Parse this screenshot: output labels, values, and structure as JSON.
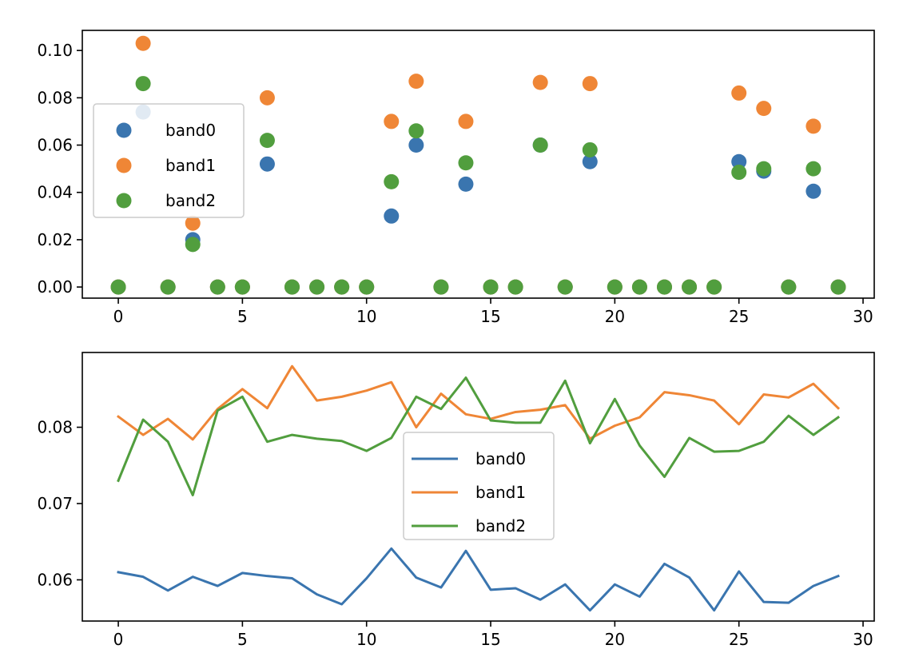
{
  "chart_data": [
    {
      "type": "scatter",
      "title": "",
      "xlabel": "",
      "ylabel": "",
      "xlim": [
        -1.45,
        30.45
      ],
      "ylim": [
        -0.0047,
        0.1085
      ],
      "xticks": [
        0,
        5,
        10,
        15,
        20,
        25,
        30
      ],
      "yticks": [
        0.0,
        0.02,
        0.04,
        0.06,
        0.08,
        0.1
      ],
      "ytick_labels": [
        "0.00",
        "0.02",
        "0.04",
        "0.06",
        "0.08",
        "0.10"
      ],
      "grid": false,
      "legend": {
        "placement": "center-left"
      },
      "x": [
        0,
        1,
        2,
        3,
        4,
        5,
        6,
        7,
        8,
        9,
        10,
        11,
        12,
        13,
        14,
        15,
        16,
        17,
        18,
        19,
        20,
        21,
        22,
        23,
        24,
        25,
        26,
        27,
        28,
        29
      ],
      "series": [
        {
          "name": "band0",
          "color": "#3a75af",
          "values": [
            0,
            0.074,
            0,
            0.02,
            0,
            0,
            0.052,
            0,
            0,
            0,
            0,
            0.03,
            0.06,
            0,
            0.0435,
            0,
            0,
            0.06,
            0,
            0.053,
            0,
            0,
            0,
            0,
            0,
            0.053,
            0.049,
            0,
            0.0405,
            0
          ]
        },
        {
          "name": "band1",
          "color": "#ef8636",
          "values": [
            0,
            0.103,
            0,
            0.027,
            0,
            0,
            0.08,
            0,
            0,
            0,
            0,
            0.07,
            0.087,
            0,
            0.07,
            0,
            0,
            0.0865,
            0,
            0.086,
            0,
            0,
            0,
            0,
            0,
            0.082,
            0.0755,
            0,
            0.068,
            0
          ]
        },
        {
          "name": "band2",
          "color": "#519e3e",
          "values": [
            0,
            0.086,
            0,
            0.018,
            0,
            0,
            0.062,
            0,
            0,
            0,
            0,
            0.0445,
            0.066,
            0,
            0.0525,
            0,
            0,
            0.06,
            0,
            0.058,
            0,
            0,
            0,
            0,
            0,
            0.0485,
            0.05,
            0,
            0.05,
            0
          ]
        }
      ]
    },
    {
      "type": "line",
      "title": "",
      "xlabel": "",
      "ylabel": "",
      "xlim": [
        -1.45,
        30.45
      ],
      "ylim": [
        0.0546,
        0.0898
      ],
      "xticks": [
        0,
        5,
        10,
        15,
        20,
        25,
        30
      ],
      "yticks": [
        0.06,
        0.07,
        0.08
      ],
      "ytick_labels": [
        "0.06",
        "0.07",
        "0.08"
      ],
      "grid": false,
      "legend": {
        "placement": "center"
      },
      "x": [
        0,
        1,
        2,
        3,
        4,
        5,
        6,
        7,
        8,
        9,
        10,
        11,
        12,
        13,
        14,
        15,
        16,
        17,
        18,
        19,
        20,
        21,
        22,
        23,
        24,
        25,
        26,
        27,
        28,
        29
      ],
      "series": [
        {
          "name": "band0",
          "color": "#3a75af",
          "values": [
            0.061,
            0.0604,
            0.0586,
            0.0604,
            0.0592,
            0.0609,
            0.0605,
            0.0602,
            0.0581,
            0.0568,
            0.0602,
            0.0641,
            0.0603,
            0.059,
            0.0638,
            0.0587,
            0.0589,
            0.0574,
            0.0594,
            0.056,
            0.0594,
            0.0578,
            0.0621,
            0.0603,
            0.056,
            0.0611,
            0.0571,
            0.057,
            0.0592,
            0.0605
          ]
        },
        {
          "name": "band1",
          "color": "#ef8636",
          "values": [
            0.0814,
            0.079,
            0.0811,
            0.0784,
            0.0824,
            0.085,
            0.0825,
            0.088,
            0.0835,
            0.084,
            0.0848,
            0.0859,
            0.08,
            0.0844,
            0.0817,
            0.0811,
            0.082,
            0.0823,
            0.0829,
            0.0785,
            0.0802,
            0.0813,
            0.0846,
            0.0842,
            0.0835,
            0.0804,
            0.0843,
            0.0839,
            0.0857,
            0.0825
          ]
        },
        {
          "name": "band2",
          "color": "#519e3e",
          "values": [
            0.073,
            0.081,
            0.0781,
            0.0711,
            0.0822,
            0.084,
            0.0781,
            0.079,
            0.0785,
            0.0782,
            0.0769,
            0.0786,
            0.084,
            0.0824,
            0.0865,
            0.0809,
            0.0806,
            0.0806,
            0.0861,
            0.0779,
            0.0837,
            0.0776,
            0.0735,
            0.0786,
            0.0768,
            0.0769,
            0.0781,
            0.0815,
            0.079,
            0.0813
          ]
        }
      ]
    }
  ]
}
